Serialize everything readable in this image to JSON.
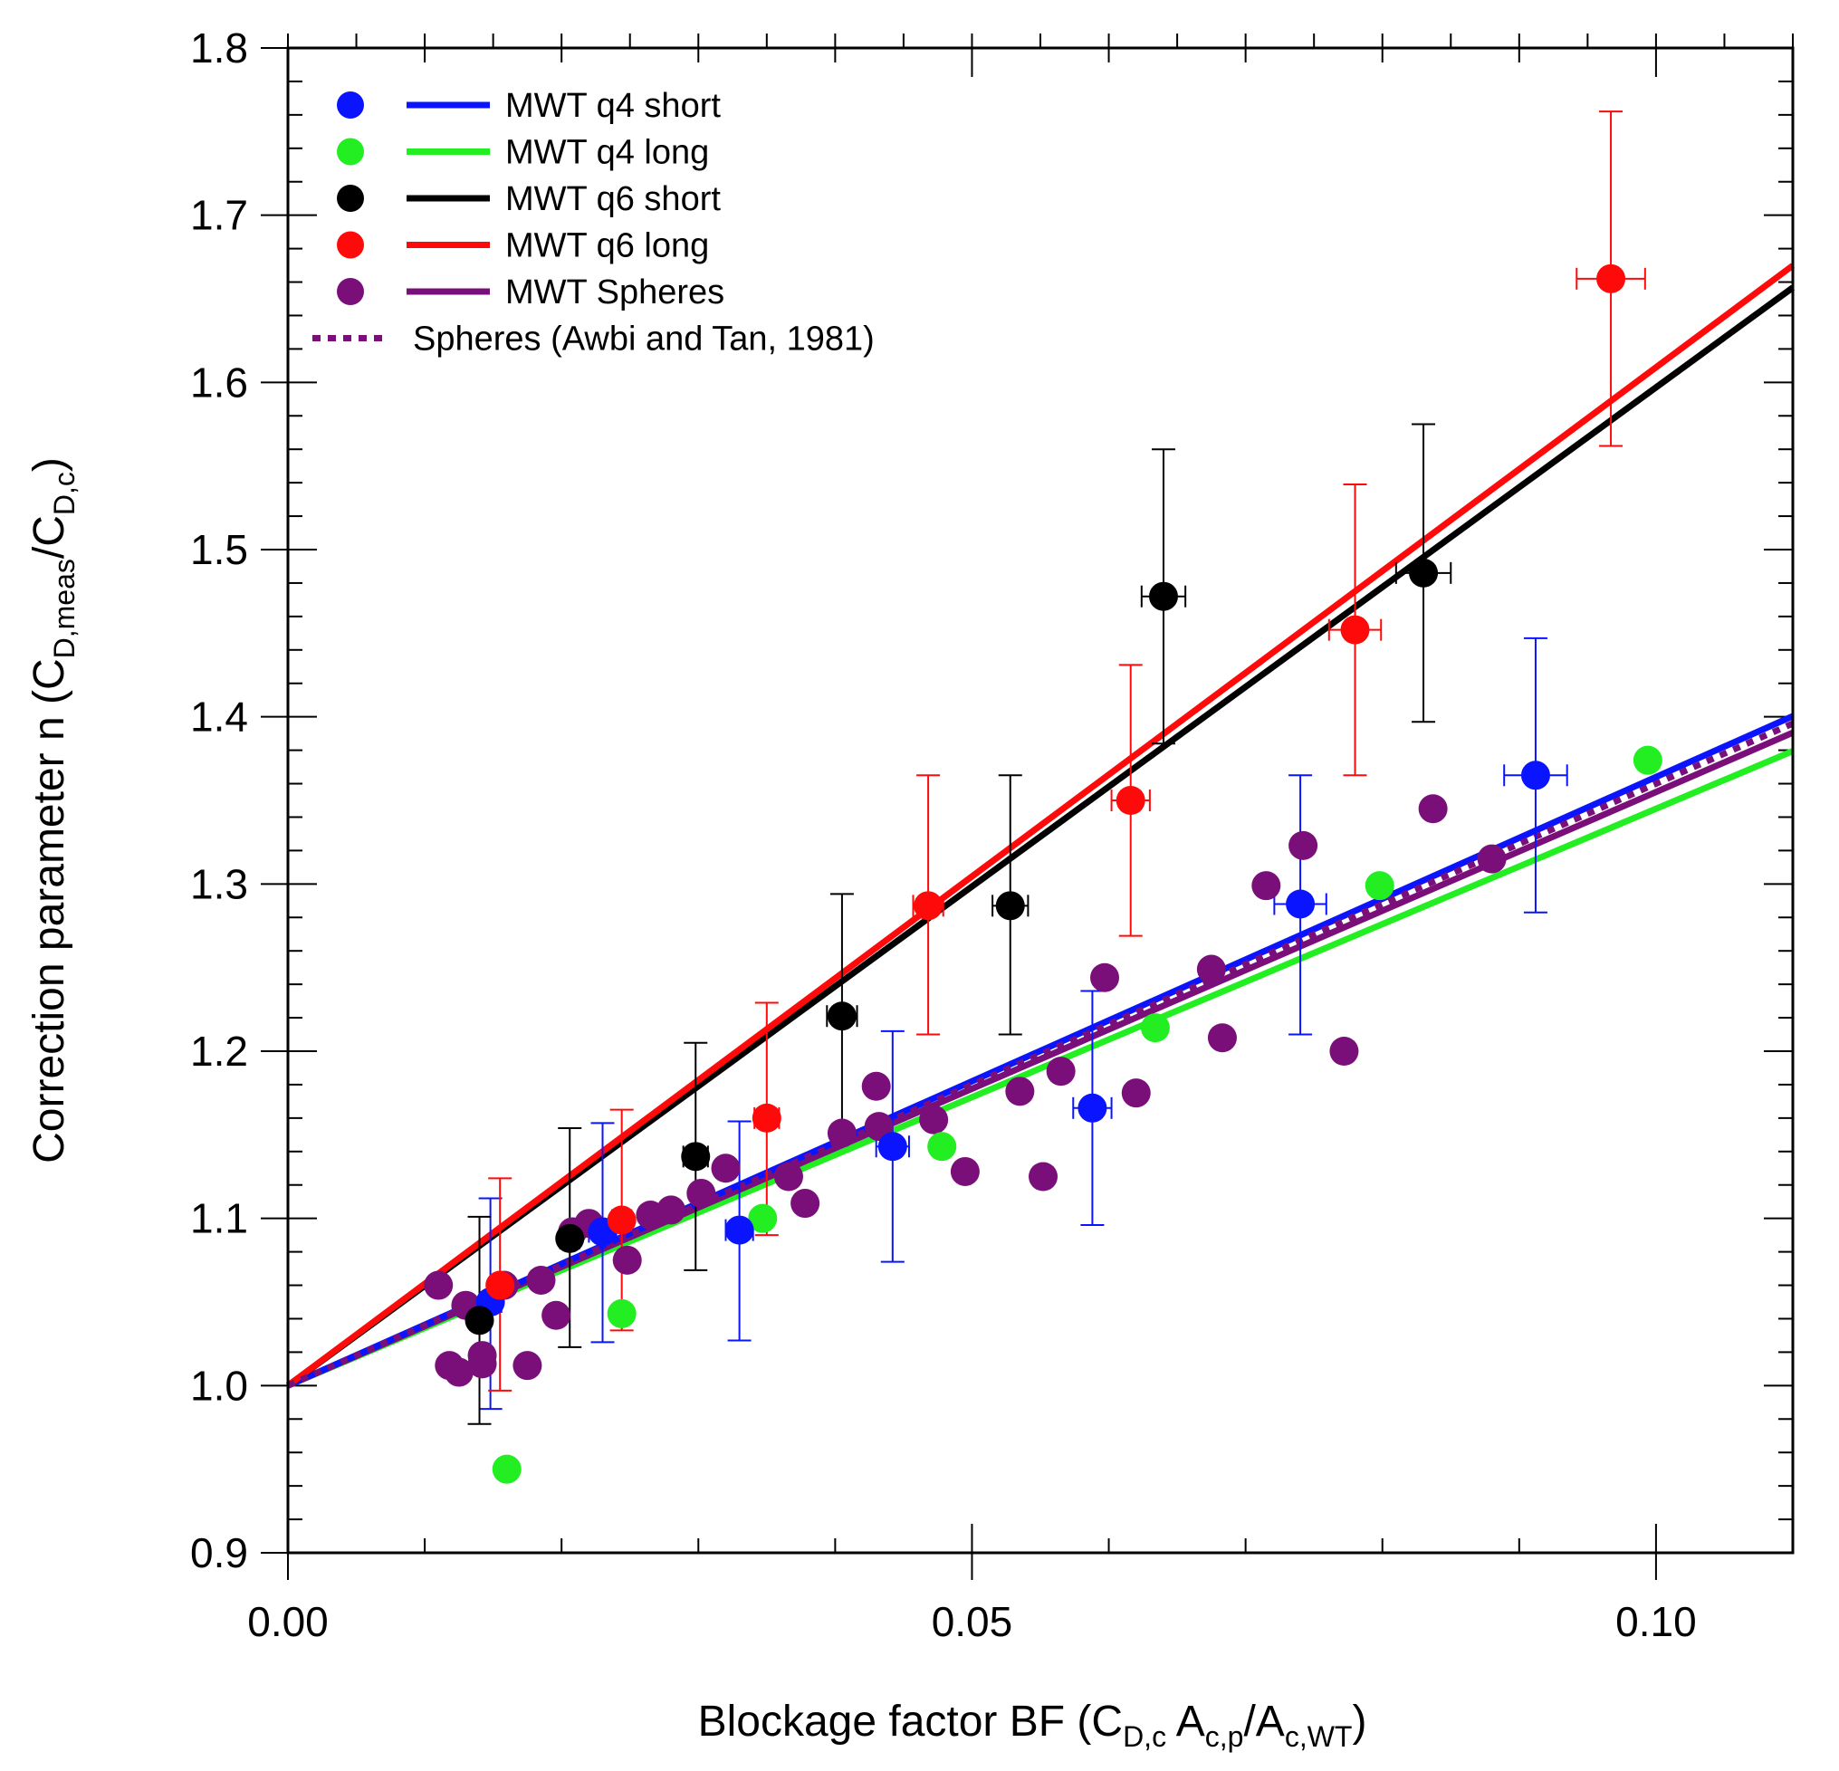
{
  "chart_data": {
    "type": "scatter",
    "title": "",
    "xlabel": {
      "main": "Blockage factor BF (C",
      "sub1": "D,c",
      "mid": " A",
      "sub2": "c,p",
      "mid2": "/A",
      "sub3": "c,WT",
      "end": ")"
    },
    "ylabel": {
      "main": "Correction parameter n (C",
      "sub1": "D,meas",
      "mid": "/C",
      "sub2": "D,c",
      "end": ")"
    },
    "xlim": [
      0,
      0.11
    ],
    "ylim": [
      0.9,
      1.8
    ],
    "x_ticks": [
      {
        "value": 0.0,
        "label": "0.00"
      },
      {
        "value": 0.05,
        "label": "0.05"
      },
      {
        "value": 0.1,
        "label": "0.10"
      }
    ],
    "y_ticks": [
      {
        "value": 0.9,
        "label": "0.9"
      },
      {
        "value": 1.0,
        "label": "1.0"
      },
      {
        "value": 1.1,
        "label": "1.1"
      },
      {
        "value": 1.2,
        "label": "1.2"
      },
      {
        "value": 1.3,
        "label": "1.3"
      },
      {
        "value": 1.4,
        "label": "1.4"
      },
      {
        "value": 1.5,
        "label": "1.5"
      },
      {
        "value": 1.6,
        "label": "1.6"
      },
      {
        "value": 1.7,
        "label": "1.7"
      },
      {
        "value": 1.8,
        "label": "1.8"
      }
    ],
    "legend_position": "top-left",
    "series": [
      {
        "name": "MWT q4 short",
        "color": "#0a14ff",
        "fit_slope": 3.64,
        "points": [
          {
            "x": 0.0148,
            "y": 1.05,
            "yerr": [
              0.986,
              1.112
            ],
            "xerr": 0.0008
          },
          {
            "x": 0.023,
            "y": 1.092,
            "yerr": [
              1.026,
              1.157
            ],
            "xerr": 0.001
          },
          {
            "x": 0.033,
            "y": 1.093,
            "yerr": [
              1.027,
              1.158
            ],
            "xerr": 0.001
          },
          {
            "x": 0.0442,
            "y": 1.143,
            "yerr": [
              1.074,
              1.212
            ],
            "xerr": 0.0012
          },
          {
            "x": 0.0588,
            "y": 1.166,
            "yerr": [
              1.096,
              1.236
            ],
            "xerr": 0.0014
          },
          {
            "x": 0.074,
            "y": 1.288,
            "yerr": [
              1.21,
              1.365
            ],
            "xerr": 0.0019
          },
          {
            "x": 0.0912,
            "y": 1.365,
            "yerr": [
              1.283,
              1.447
            ],
            "xerr": 0.0023
          }
        ]
      },
      {
        "name": "MWT q4 long",
        "color": "#22ee22",
        "fit_slope": 3.45,
        "points": [
          {
            "x": 0.016,
            "y": 0.95
          },
          {
            "x": 0.0244,
            "y": 1.043
          },
          {
            "x": 0.0347,
            "y": 1.1
          },
          {
            "x": 0.0478,
            "y": 1.143
          },
          {
            "x": 0.0634,
            "y": 1.214
          },
          {
            "x": 0.0798,
            "y": 1.299
          },
          {
            "x": 0.0994,
            "y": 1.374
          }
        ]
      },
      {
        "name": "MWT q6 short",
        "color": "#000000",
        "fit_slope": 5.97,
        "points": [
          {
            "x": 0.014,
            "y": 1.039,
            "yerr": [
              0.977,
              1.101
            ],
            "xerr": 0.0006
          },
          {
            "x": 0.0206,
            "y": 1.088,
            "yerr": [
              1.023,
              1.154
            ],
            "xerr": 0.0007
          },
          {
            "x": 0.0298,
            "y": 1.137,
            "yerr": [
              1.069,
              1.205
            ],
            "xerr": 0.0009
          },
          {
            "x": 0.0405,
            "y": 1.221,
            "yerr": [
              1.148,
              1.294
            ],
            "xerr": 0.0011
          },
          {
            "x": 0.0528,
            "y": 1.287,
            "yerr": [
              1.21,
              1.365
            ],
            "xerr": 0.0013
          },
          {
            "x": 0.064,
            "y": 1.472,
            "yerr": [
              1.384,
              1.56
            ],
            "xerr": 0.0016
          },
          {
            "x": 0.083,
            "y": 1.486,
            "yerr": [
              1.397,
              1.575
            ],
            "xerr": 0.002
          }
        ]
      },
      {
        "name": "MWT q6 long",
        "color": "#ff0a0a",
        "fit_slope": 6.09,
        "points": [
          {
            "x": 0.0155,
            "y": 1.06,
            "yerr": [
              0.997,
              1.124
            ],
            "xerr": 0.0006
          },
          {
            "x": 0.0244,
            "y": 1.099,
            "yerr": [
              1.033,
              1.165
            ],
            "xerr": 0.0007
          },
          {
            "x": 0.035,
            "y": 1.16,
            "yerr": [
              1.09,
              1.229
            ],
            "xerr": 0.0009
          },
          {
            "x": 0.0468,
            "y": 1.287,
            "yerr": [
              1.21,
              1.365
            ],
            "xerr": 0.0011
          },
          {
            "x": 0.0616,
            "y": 1.35,
            "yerr": [
              1.269,
              1.431
            ],
            "xerr": 0.0014
          },
          {
            "x": 0.078,
            "y": 1.452,
            "yerr": [
              1.365,
              1.539
            ],
            "xerr": 0.0019
          },
          {
            "x": 0.0967,
            "y": 1.662,
            "yerr": [
              1.562,
              1.762
            ],
            "xerr": 0.0025
          }
        ]
      },
      {
        "name": "MWT Spheres",
        "color": "#7a0f7a",
        "fit_slope": 3.55,
        "points": [
          {
            "x": 0.011,
            "y": 1.06
          },
          {
            "x": 0.0118,
            "y": 1.012
          },
          {
            "x": 0.0125,
            "y": 1.008
          },
          {
            "x": 0.013,
            "y": 1.048
          },
          {
            "x": 0.0142,
            "y": 1.013
          },
          {
            "x": 0.0142,
            "y": 1.018
          },
          {
            "x": 0.0158,
            "y": 1.06
          },
          {
            "x": 0.0175,
            "y": 1.012
          },
          {
            "x": 0.0185,
            "y": 1.063
          },
          {
            "x": 0.0196,
            "y": 1.042
          },
          {
            "x": 0.0208,
            "y": 1.092
          },
          {
            "x": 0.022,
            "y": 1.097
          },
          {
            "x": 0.0248,
            "y": 1.075
          },
          {
            "x": 0.0265,
            "y": 1.102
          },
          {
            "x": 0.028,
            "y": 1.105
          },
          {
            "x": 0.0302,
            "y": 1.115
          },
          {
            "x": 0.032,
            "y": 1.13
          },
          {
            "x": 0.0366,
            "y": 1.125
          },
          {
            "x": 0.0378,
            "y": 1.109
          },
          {
            "x": 0.0405,
            "y": 1.151
          },
          {
            "x": 0.043,
            "y": 1.179
          },
          {
            "x": 0.0432,
            "y": 1.155
          },
          {
            "x": 0.0472,
            "y": 1.159
          },
          {
            "x": 0.0495,
            "y": 1.128
          },
          {
            "x": 0.0535,
            "y": 1.176
          },
          {
            "x": 0.0552,
            "y": 1.125
          },
          {
            "x": 0.0565,
            "y": 1.188
          },
          {
            "x": 0.0597,
            "y": 1.244
          },
          {
            "x": 0.062,
            "y": 1.175
          },
          {
            "x": 0.0675,
            "y": 1.249
          },
          {
            "x": 0.0683,
            "y": 1.208
          },
          {
            "x": 0.0715,
            "y": 1.299
          },
          {
            "x": 0.0742,
            "y": 1.323
          },
          {
            "x": 0.0772,
            "y": 1.2
          },
          {
            "x": 0.0837,
            "y": 1.345
          },
          {
            "x": 0.088,
            "y": 1.315
          }
        ]
      }
    ],
    "reference_line": {
      "name": "Spheres (Awbi and Tan, 1981)",
      "color": "#7a0f7a",
      "style": "dotted",
      "slope": 3.6
    }
  }
}
